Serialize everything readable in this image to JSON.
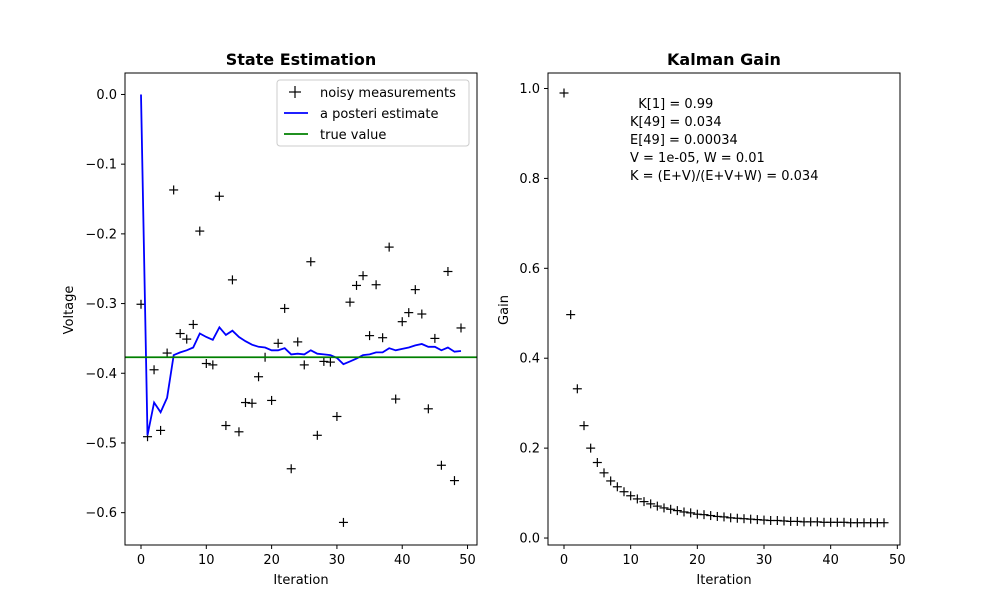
{
  "chart_data": [
    {
      "type": "line",
      "title": "State Estimation",
      "xlabel": "Iteration",
      "ylabel": "Voltage",
      "xlim": [
        -2.45,
        51.45
      ],
      "ylim": [
        -0.6464,
        0.0308
      ],
      "xticks": [
        0,
        10,
        20,
        30,
        40,
        50
      ],
      "yticks": [
        0.0,
        -0.1,
        -0.2,
        -0.3,
        -0.4,
        -0.5,
        -0.6
      ],
      "ytick_labels": [
        "0.0",
        "−0.1",
        "−0.2",
        "−0.3",
        "−0.4",
        "−0.5",
        "−0.6"
      ],
      "legend_position": "top-right",
      "series": [
        {
          "name": "noisy measurements",
          "style": "marker-plus",
          "color": "#000000",
          "x": [
            0,
            1,
            2,
            3,
            4,
            5,
            6,
            7,
            8,
            9,
            10,
            11,
            12,
            13,
            14,
            15,
            16,
            17,
            18,
            19,
            20,
            21,
            22,
            23,
            24,
            25,
            26,
            27,
            28,
            29,
            30,
            31,
            32,
            33,
            34,
            35,
            36,
            37,
            38,
            39,
            40,
            41,
            42,
            43,
            44,
            45,
            46,
            47,
            48,
            49
          ],
          "y": [
            -0.301,
            -0.491,
            -0.395,
            -0.482,
            -0.371,
            -0.137,
            -0.343,
            -0.351,
            -0.33,
            -0.196,
            -0.386,
            -0.388,
            -0.146,
            -0.475,
            -0.266,
            -0.484,
            -0.442,
            -0.443,
            -0.405,
            -0.377,
            -0.439,
            -0.357,
            -0.307,
            -0.537,
            -0.355,
            -0.388,
            -0.24,
            -0.489,
            -0.383,
            -0.384,
            -0.462,
            -0.614,
            -0.298,
            -0.274,
            -0.26,
            -0.346,
            -0.273,
            -0.349,
            -0.219,
            -0.437,
            -0.326,
            -0.313,
            -0.28,
            -0.315,
            -0.451,
            -0.35,
            -0.532,
            -0.254,
            -0.554,
            -0.335
          ]
        },
        {
          "name": "a posteri estimate",
          "style": "line",
          "color": "#0000ff",
          "x": [
            0,
            1,
            2,
            3,
            4,
            5,
            6,
            7,
            8,
            9,
            10,
            11,
            12,
            13,
            14,
            15,
            16,
            17,
            18,
            19,
            20,
            21,
            22,
            23,
            24,
            25,
            26,
            27,
            28,
            29,
            30,
            31,
            32,
            33,
            34,
            35,
            36,
            37,
            38,
            39,
            40,
            41,
            42,
            43,
            44,
            45,
            46,
            47,
            48,
            49
          ],
          "y": [
            0.0,
            -0.489,
            -0.442,
            -0.456,
            -0.435,
            -0.374,
            -0.37,
            -0.367,
            -0.363,
            -0.343,
            -0.348,
            -0.352,
            -0.334,
            -0.345,
            -0.339,
            -0.348,
            -0.354,
            -0.359,
            -0.362,
            -0.363,
            -0.367,
            -0.367,
            -0.364,
            -0.373,
            -0.372,
            -0.373,
            -0.367,
            -0.372,
            -0.373,
            -0.374,
            -0.378,
            -0.387,
            -0.383,
            -0.379,
            -0.374,
            -0.373,
            -0.37,
            -0.37,
            -0.364,
            -0.367,
            -0.365,
            -0.363,
            -0.36,
            -0.358,
            -0.362,
            -0.362,
            -0.367,
            -0.363,
            -0.369,
            -0.368
          ]
        },
        {
          "name": "true value",
          "style": "hline",
          "color": "#008000",
          "y": -0.377
        }
      ]
    },
    {
      "type": "scatter",
      "title": "Kalman Gain",
      "xlabel": "Iteration",
      "ylabel": "Gain",
      "xlim": [
        -2.4,
        50.4
      ],
      "ylim": [
        -0.0155,
        1.0345
      ],
      "xticks": [
        0,
        10,
        20,
        30,
        40,
        50
      ],
      "yticks": [
        0.0,
        0.2,
        0.4,
        0.6,
        0.8,
        1.0
      ],
      "ytick_labels": [
        "0.0",
        "0.2",
        "0.4",
        "0.6",
        "0.8",
        "1.0"
      ],
      "series": [
        {
          "style": "marker-plus",
          "color": "#000000",
          "x": [
            0,
            1,
            2,
            3,
            4,
            5,
            6,
            7,
            8,
            9,
            10,
            11,
            12,
            13,
            14,
            15,
            16,
            17,
            18,
            19,
            20,
            21,
            22,
            23,
            24,
            25,
            26,
            27,
            28,
            29,
            30,
            31,
            32,
            33,
            34,
            35,
            36,
            37,
            38,
            39,
            40,
            41,
            42,
            43,
            44,
            45,
            46,
            47,
            48
          ],
          "y": [
            0.99,
            0.497,
            0.332,
            0.25,
            0.2,
            0.168,
            0.145,
            0.127,
            0.114,
            0.103,
            0.094,
            0.087,
            0.081,
            0.076,
            0.071,
            0.067,
            0.064,
            0.061,
            0.058,
            0.056,
            0.053,
            0.052,
            0.05,
            0.048,
            0.047,
            0.045,
            0.044,
            0.043,
            0.042,
            0.041,
            0.04,
            0.039,
            0.039,
            0.038,
            0.037,
            0.037,
            0.036,
            0.036,
            0.036,
            0.035,
            0.035,
            0.035,
            0.035,
            0.034,
            0.034,
            0.034,
            0.034,
            0.034,
            0.034
          ]
        }
      ],
      "annotations": [
        "  K[1] = 0.99",
        "K[49] = 0.034",
        "E[49] = 0.00034",
        "V = 1e-05, W = 0.01",
        "K = (E+V)/(E+V+W) = 0.034"
      ]
    }
  ]
}
